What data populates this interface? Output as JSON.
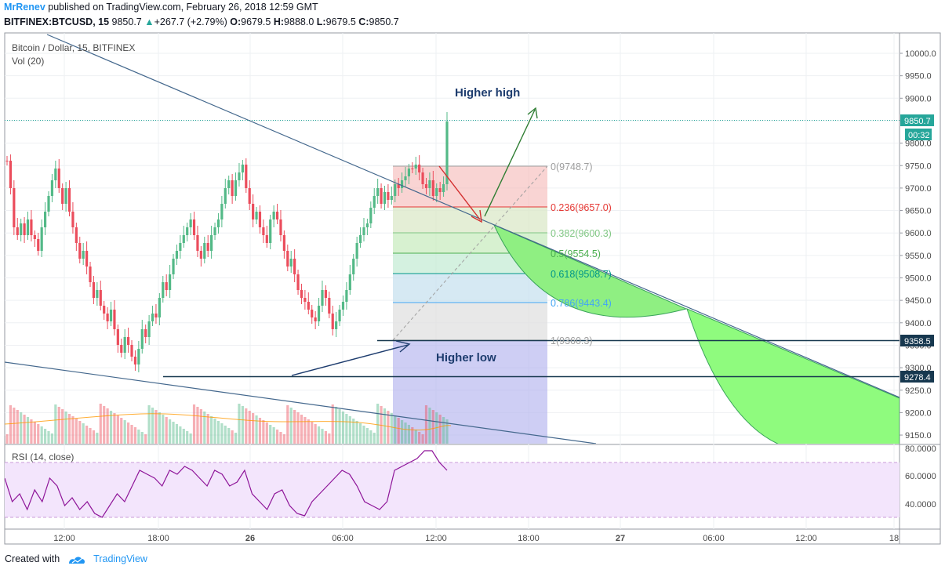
{
  "header": {
    "author": "MrRenev",
    "published_text": "published on TradingView.com, February 26, 2018 12:59 GMT",
    "symbol": "BITFINEX:BTCUSD, 15",
    "last": "9850.7",
    "change": "+267.7 (+2.79%)",
    "open_label": "O:",
    "open": "9679.5",
    "high_label": "H:",
    "high": "9888.0",
    "low_label": "L:",
    "low": "9679.5",
    "close_label": "C:",
    "close": "9850.7"
  },
  "pane": {
    "title": "Bitcoin / Dollar, 15, BITFINEX",
    "volume_label": "Vol (20)",
    "rsi_label": "RSI (14, close)"
  },
  "price_axis": [
    "10000.0",
    "9950.0",
    "9900.0",
    "9850.0",
    "9800.0",
    "9750.0",
    "9700.0",
    "9650.0",
    "9600.0",
    "9550.0",
    "9500.0",
    "9450.0",
    "9400.0",
    "9350.0",
    "9300.0",
    "9250.0",
    "9200.0",
    "9150.0"
  ],
  "rsi_axis": [
    "80.0000",
    "60.0000",
    "40.0000"
  ],
  "time_axis": [
    "12:00",
    "18:00",
    "26",
    "06:00",
    "12:00",
    "18:00",
    "27",
    "06:00",
    "12:00",
    "18"
  ],
  "price_tags": {
    "last_price": "9850.7",
    "countdown": "00:32",
    "line1": "9358.5",
    "line2": "9278.4"
  },
  "fib_levels": [
    {
      "label": "0(9748.7)",
      "color": "#9e9e9e"
    },
    {
      "label": "0.236(9657.0)",
      "color": "#e53935"
    },
    {
      "label": "0.382(9600.3)",
      "color": "#81c784"
    },
    {
      "label": "0.5(9554.5)",
      "color": "#4caf50"
    },
    {
      "label": "0.618(9508.7)",
      "color": "#009688"
    },
    {
      "label": "0.786(9443.4)",
      "color": "#42a5f5"
    },
    {
      "label": "1(9360.3)",
      "color": "#9e9e9e"
    }
  ],
  "annotations": {
    "higher_high": "Higher high",
    "higher_low": "Higher low"
  },
  "colors": {
    "up": "#26a69a",
    "down": "#ef5350",
    "candle_up": "#53b987",
    "candle_down": "#eb4d5c",
    "annotation_text": "#1d3c6e",
    "rsi_line": "#8e1599",
    "rsi_band": "#f3e5fc"
  },
  "footer": {
    "created_with": "Created with",
    "brand": "TradingView"
  }
}
